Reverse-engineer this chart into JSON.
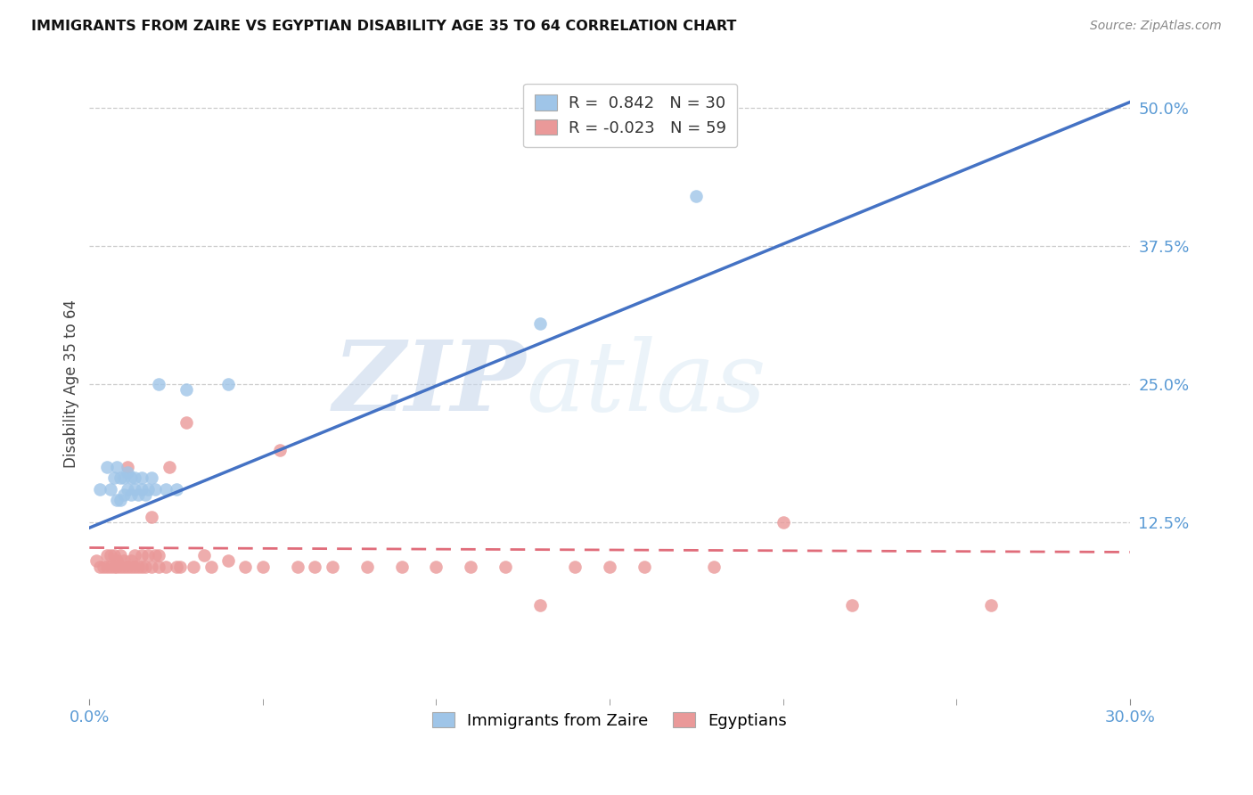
{
  "title": "IMMIGRANTS FROM ZAIRE VS EGYPTIAN DISABILITY AGE 35 TO 64 CORRELATION CHART",
  "source": "Source: ZipAtlas.com",
  "xlabel_color": "#5b9bd5",
  "ylabel": "Disability Age 35 to 64",
  "xlim": [
    0.0,
    0.3
  ],
  "ylim": [
    -0.035,
    0.535
  ],
  "yticks_right": [
    0.125,
    0.25,
    0.375,
    0.5
  ],
  "ytick_right_labels": [
    "12.5%",
    "25.0%",
    "37.5%",
    "50.0%"
  ],
  "legend_blue_r": "0.842",
  "legend_blue_n": "30",
  "legend_pink_r": "-0.023",
  "legend_pink_n": "59",
  "blue_color": "#9fc5e8",
  "pink_color": "#ea9999",
  "blue_line_color": "#4472c4",
  "pink_line_color": "#e06c7a",
  "watermark_zip": "ZIP",
  "watermark_atlas": "atlas",
  "blue_line_x0": 0.0,
  "blue_line_y0": 0.12,
  "blue_line_x1": 0.3,
  "blue_line_y1": 0.505,
  "pink_line_x0": 0.0,
  "pink_line_y0": 0.102,
  "pink_line_x1": 0.3,
  "pink_line_y1": 0.098,
  "blue_scatter_x": [
    0.003,
    0.005,
    0.006,
    0.007,
    0.008,
    0.008,
    0.009,
    0.009,
    0.01,
    0.01,
    0.011,
    0.011,
    0.012,
    0.012,
    0.013,
    0.013,
    0.014,
    0.015,
    0.015,
    0.016,
    0.017,
    0.018,
    0.019,
    0.02,
    0.022,
    0.025,
    0.028,
    0.04,
    0.13,
    0.175
  ],
  "blue_scatter_y": [
    0.155,
    0.175,
    0.155,
    0.165,
    0.145,
    0.175,
    0.145,
    0.165,
    0.15,
    0.165,
    0.155,
    0.17,
    0.15,
    0.165,
    0.155,
    0.165,
    0.15,
    0.155,
    0.165,
    0.15,
    0.155,
    0.165,
    0.155,
    0.25,
    0.155,
    0.155,
    0.245,
    0.25,
    0.305,
    0.42
  ],
  "pink_scatter_x": [
    0.002,
    0.003,
    0.004,
    0.005,
    0.005,
    0.006,
    0.006,
    0.007,
    0.007,
    0.008,
    0.008,
    0.009,
    0.009,
    0.01,
    0.01,
    0.011,
    0.011,
    0.012,
    0.012,
    0.013,
    0.013,
    0.014,
    0.015,
    0.015,
    0.016,
    0.017,
    0.018,
    0.018,
    0.019,
    0.02,
    0.02,
    0.022,
    0.023,
    0.025,
    0.026,
    0.028,
    0.03,
    0.033,
    0.035,
    0.04,
    0.045,
    0.05,
    0.055,
    0.06,
    0.065,
    0.07,
    0.08,
    0.09,
    0.1,
    0.11,
    0.12,
    0.13,
    0.14,
    0.15,
    0.16,
    0.18,
    0.2,
    0.22,
    0.26
  ],
  "pink_scatter_y": [
    0.09,
    0.085,
    0.085,
    0.085,
    0.095,
    0.085,
    0.095,
    0.085,
    0.095,
    0.09,
    0.085,
    0.085,
    0.095,
    0.085,
    0.09,
    0.085,
    0.175,
    0.09,
    0.085,
    0.085,
    0.095,
    0.085,
    0.085,
    0.095,
    0.085,
    0.095,
    0.13,
    0.085,
    0.095,
    0.085,
    0.095,
    0.085,
    0.175,
    0.085,
    0.085,
    0.215,
    0.085,
    0.095,
    0.085,
    0.09,
    0.085,
    0.085,
    0.19,
    0.085,
    0.085,
    0.085,
    0.085,
    0.085,
    0.085,
    0.085,
    0.085,
    0.05,
    0.085,
    0.085,
    0.085,
    0.085,
    0.125,
    0.05,
    0.05
  ]
}
